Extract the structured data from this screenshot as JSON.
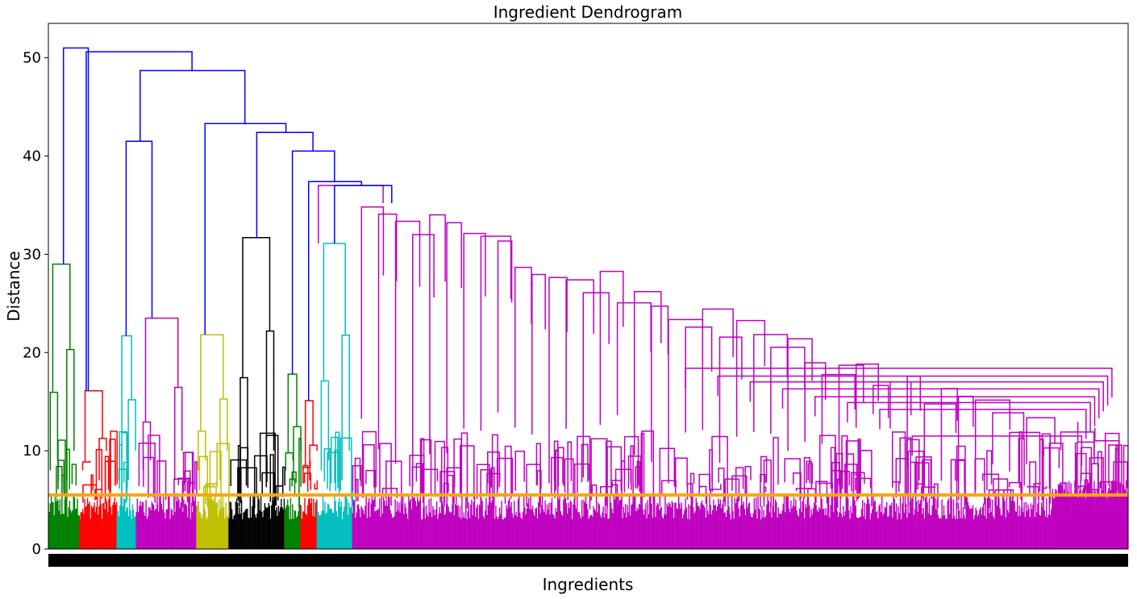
{
  "chart_data": {
    "type": "dendrogram",
    "title": "Ingredient Dendrogram",
    "xlabel": "Ingredients",
    "ylabel": "Distance",
    "ylim": [
      0,
      53.5
    ],
    "yticks": [
      0,
      10,
      20,
      30,
      40,
      50
    ],
    "grid": false,
    "legend": "none",
    "threshold": {
      "value": 5.5,
      "color": "#ffa500"
    },
    "colors": {
      "link_above_threshold": "#0000ff",
      "clusters": [
        "#008000",
        "#ff0000",
        "#00bfbf",
        "#bf00bf",
        "#bfbf00",
        "#000000",
        "#008000",
        "#ff0000",
        "#00bfbf",
        "#bf00bf"
      ]
    },
    "clusters": [
      {
        "color": "#008000",
        "from": 0.0,
        "to": 0.0291
      },
      {
        "color": "#ff0000",
        "from": 0.0291,
        "to": 0.0636
      },
      {
        "color": "#00bfbf",
        "from": 0.0636,
        "to": 0.0815
      },
      {
        "color": "#bf00bf",
        "from": 0.0815,
        "to": 0.1374
      },
      {
        "color": "#bfbf00",
        "from": 0.1374,
        "to": 0.1673
      },
      {
        "color": "#000000",
        "from": 0.1673,
        "to": 0.219
      },
      {
        "color": "#008000",
        "from": 0.219,
        "to": 0.2339
      },
      {
        "color": "#ff0000",
        "from": 0.2339,
        "to": 0.2489
      },
      {
        "color": "#00bfbf",
        "from": 0.2489,
        "to": 0.2818
      },
      {
        "color": "#bf00bf",
        "from": 0.2818,
        "to": 1.0
      }
    ],
    "top_merges": [
      51.0,
      50.6,
      48.7,
      43.3,
      42.4,
      41.5,
      40.5,
      37.4,
      37.0,
      35.2
    ]
  }
}
